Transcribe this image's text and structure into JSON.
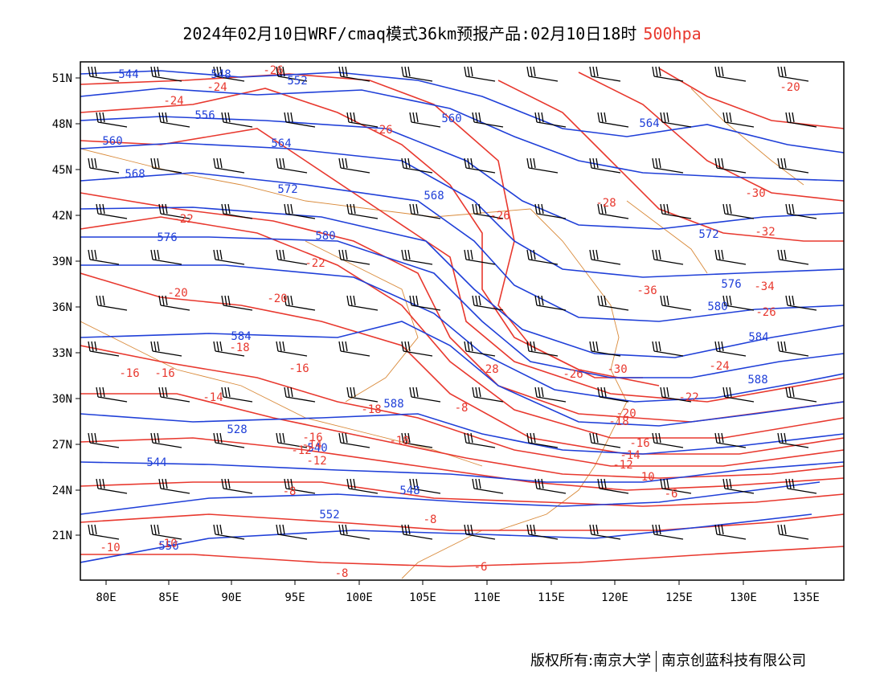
{
  "title": "2024年02月10日WRF/cmaq模式36km预报产品:02月10日18时",
  "level": "500hpa",
  "colors": {
    "height": "#1f3fd8",
    "temperature": "#e8382e",
    "coast": "#d98a3a",
    "wind": "#000000"
  },
  "map": {
    "lon_range": [
      78,
      138
    ],
    "lat_range": [
      18,
      52
    ],
    "lon_ticks": [
      "80E",
      "85E",
      "90E",
      "95E",
      "100E",
      "105E",
      "110E",
      "115E",
      "120E",
      "125E",
      "130E",
      "135E"
    ],
    "lat_ticks": [
      "51N",
      "48N",
      "45N",
      "42N",
      "39N",
      "36N",
      "33N",
      "30N",
      "27N",
      "24N",
      "21N"
    ],
    "height_labels": [
      "544",
      "548",
      "552",
      "556",
      "560",
      "564",
      "568",
      "572",
      "576",
      "580",
      "584",
      "588",
      "528",
      "540",
      "544",
      "548",
      "552",
      "556",
      "560",
      "564",
      "568",
      "572",
      "576",
      "580",
      "584",
      "588"
    ],
    "temperature_labels": [
      "-26",
      "-24",
      "-24",
      "-26",
      "-22",
      "-22",
      "-20",
      "-20",
      "-18",
      "-16",
      "-16",
      "-14",
      "-16",
      "-18",
      "-18",
      "-16",
      "-14",
      "-12",
      "-12",
      "-10",
      "-10",
      "-8",
      "-8",
      "-8",
      "-6",
      "-8",
      "-6",
      "-10",
      "-12",
      "-14",
      "-16",
      "-18",
      "-20",
      "-22",
      "-24",
      "-26",
      "-28",
      "-30",
      "-32",
      "-34",
      "-36",
      "-30",
      "-28",
      "-26",
      "-26",
      "-20"
    ]
  },
  "footer": {
    "left": "版权所有:南京大学",
    "right": "南京创蓝科技有限公司"
  }
}
